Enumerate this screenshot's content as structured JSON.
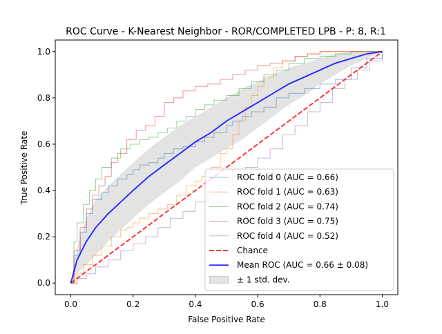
{
  "chart_data": {
    "type": "line",
    "title": "ROC Curve - K-Nearest Neighbor - ROR/COMPLETED LPB - P: 8, R:1",
    "xlabel": "False Positive Rate",
    "ylabel": "True Positive Rate",
    "xlim": [
      -0.05,
      1.05
    ],
    "ylim": [
      -0.05,
      1.05
    ],
    "xticks": [
      0.0,
      0.2,
      0.4,
      0.6,
      0.8,
      1.0
    ],
    "yticks": [
      0.0,
      0.2,
      0.4,
      0.6,
      0.8,
      1.0
    ],
    "xtick_labels": [
      "0.0",
      "0.2",
      "0.4",
      "0.6",
      "0.8",
      "1.0"
    ],
    "ytick_labels": [
      "0.0",
      "0.2",
      "0.4",
      "0.6",
      "0.8",
      "1.0"
    ],
    "grid": false,
    "legend_position": "lower-right",
    "series": [
      {
        "name": "ROC fold 0 (AUC = 0.66)",
        "color": "#1f77b4",
        "style": "step",
        "x": [
          0,
          0.01,
          0.03,
          0.05,
          0.07,
          0.1,
          0.12,
          0.15,
          0.18,
          0.2,
          0.22,
          0.25,
          0.28,
          0.3,
          0.33,
          0.36,
          0.4,
          0.43,
          0.46,
          0.5,
          0.52,
          0.55,
          0.58,
          0.62,
          0.66,
          0.7,
          0.75,
          0.8,
          0.85,
          0.9,
          0.95,
          1.0
        ],
        "y": [
          0,
          0.12,
          0.22,
          0.3,
          0.36,
          0.39,
          0.42,
          0.45,
          0.47,
          0.49,
          0.51,
          0.52,
          0.54,
          0.56,
          0.58,
          0.59,
          0.61,
          0.63,
          0.65,
          0.68,
          0.7,
          0.72,
          0.74,
          0.76,
          0.8,
          0.82,
          0.84,
          0.86,
          0.88,
          0.93,
          0.97,
          1.0
        ]
      },
      {
        "name": "ROC fold 1 (AUC = 0.63)",
        "color": "#ff7f0e",
        "style": "step",
        "x": [
          0,
          0.02,
          0.04,
          0.07,
          0.1,
          0.13,
          0.16,
          0.18,
          0.2,
          0.22,
          0.25,
          0.28,
          0.31,
          0.34,
          0.37,
          0.4,
          0.42,
          0.45,
          0.48,
          0.5,
          0.52,
          0.54,
          0.56,
          0.58,
          0.6,
          0.62,
          0.65,
          0.68,
          0.72,
          0.76,
          0.8,
          0.85,
          0.9,
          1.0
        ],
        "y": [
          0,
          0.04,
          0.08,
          0.12,
          0.16,
          0.2,
          0.23,
          0.24,
          0.26,
          0.28,
          0.3,
          0.32,
          0.34,
          0.38,
          0.42,
          0.44,
          0.46,
          0.5,
          0.56,
          0.58,
          0.64,
          0.7,
          0.76,
          0.81,
          0.85,
          0.89,
          0.93,
          0.96,
          0.98,
          0.99,
          1.0,
          1.0,
          1.0,
          1.0
        ]
      },
      {
        "name": "ROC fold 2 (AUC = 0.74)",
        "color": "#2ca02c",
        "style": "step",
        "x": [
          0,
          0.01,
          0.02,
          0.04,
          0.06,
          0.08,
          0.1,
          0.13,
          0.16,
          0.19,
          0.22,
          0.25,
          0.28,
          0.31,
          0.34,
          0.37,
          0.4,
          0.43,
          0.46,
          0.5,
          0.54,
          0.58,
          0.62,
          0.66,
          0.7,
          0.75,
          0.8,
          0.85,
          0.9,
          0.95,
          1.0
        ],
        "y": [
          0,
          0.18,
          0.26,
          0.34,
          0.4,
          0.45,
          0.5,
          0.54,
          0.58,
          0.6,
          0.62,
          0.63,
          0.65,
          0.67,
          0.7,
          0.72,
          0.75,
          0.77,
          0.79,
          0.81,
          0.84,
          0.87,
          0.9,
          0.92,
          0.95,
          0.97,
          0.98,
          0.99,
          1.0,
          1.0,
          1.0
        ]
      },
      {
        "name": "ROC fold 3 (AUC = 0.75)",
        "color": "#d62728",
        "style": "step",
        "x": [
          0,
          0.01,
          0.03,
          0.05,
          0.07,
          0.09,
          0.11,
          0.13,
          0.15,
          0.18,
          0.21,
          0.24,
          0.27,
          0.3,
          0.33,
          0.36,
          0.4,
          0.44,
          0.48,
          0.52,
          0.56,
          0.6,
          0.64,
          0.68,
          0.72,
          0.76,
          0.8,
          0.85,
          0.9,
          0.95,
          1.0
        ],
        "y": [
          0,
          0.14,
          0.24,
          0.32,
          0.38,
          0.42,
          0.46,
          0.52,
          0.56,
          0.62,
          0.66,
          0.68,
          0.72,
          0.78,
          0.8,
          0.83,
          0.85,
          0.86,
          0.88,
          0.9,
          0.92,
          0.94,
          0.95,
          0.96,
          0.98,
          0.99,
          1.0,
          1.0,
          1.0,
          1.0,
          1.0
        ]
      },
      {
        "name": "ROC fold 4 (AUC = 0.52)",
        "color": "#9467bd",
        "style": "step",
        "x": [
          0,
          0.02,
          0.05,
          0.08,
          0.12,
          0.16,
          0.2,
          0.24,
          0.28,
          0.32,
          0.36,
          0.4,
          0.44,
          0.48,
          0.52,
          0.56,
          0.6,
          0.64,
          0.68,
          0.72,
          0.76,
          0.8,
          0.84,
          0.88,
          0.92,
          0.96,
          1.0
        ],
        "y": [
          0,
          0.02,
          0.04,
          0.07,
          0.1,
          0.14,
          0.17,
          0.2,
          0.24,
          0.28,
          0.31,
          0.35,
          0.38,
          0.42,
          0.46,
          0.5,
          0.54,
          0.58,
          0.64,
          0.68,
          0.74,
          0.78,
          0.84,
          0.88,
          0.92,
          0.96,
          1.0
        ]
      },
      {
        "name": "Chance",
        "color": "#ff0000",
        "style": "dashed",
        "x": [
          0,
          1
        ],
        "y": [
          0,
          1
        ]
      },
      {
        "name": "Mean ROC (AUC = 0.66 ± 0.08)",
        "color": "#0000ff",
        "style": "solid",
        "x": [
          0,
          0.02,
          0.05,
          0.08,
          0.12,
          0.16,
          0.2,
          0.25,
          0.3,
          0.35,
          0.4,
          0.45,
          0.5,
          0.55,
          0.6,
          0.65,
          0.7,
          0.75,
          0.8,
          0.85,
          0.9,
          0.95,
          1.0
        ],
        "y": [
          0,
          0.1,
          0.18,
          0.24,
          0.3,
          0.35,
          0.4,
          0.46,
          0.51,
          0.56,
          0.61,
          0.65,
          0.7,
          0.74,
          0.78,
          0.82,
          0.86,
          0.89,
          0.92,
          0.95,
          0.97,
          0.99,
          1.0
        ]
      }
    ],
    "std_band": {
      "name": "± 1 std. dev.",
      "color": "#c0c0c0",
      "x": [
        0,
        0.02,
        0.05,
        0.08,
        0.12,
        0.16,
        0.2,
        0.25,
        0.3,
        0.35,
        0.4,
        0.45,
        0.5,
        0.55,
        0.6,
        0.65,
        0.7,
        0.75,
        0.8,
        0.85,
        0.9,
        0.95,
        1.0
      ],
      "upper": [
        0,
        0.16,
        0.28,
        0.36,
        0.42,
        0.47,
        0.52,
        0.58,
        0.63,
        0.68,
        0.72,
        0.76,
        0.8,
        0.84,
        0.87,
        0.9,
        0.93,
        0.95,
        0.97,
        0.99,
        1.0,
        1.0,
        1.0
      ],
      "lower": [
        0,
        0.04,
        0.08,
        0.12,
        0.18,
        0.23,
        0.28,
        0.34,
        0.39,
        0.44,
        0.5,
        0.54,
        0.58,
        0.62,
        0.67,
        0.72,
        0.77,
        0.81,
        0.86,
        0.9,
        0.94,
        0.97,
        1.0
      ]
    }
  }
}
